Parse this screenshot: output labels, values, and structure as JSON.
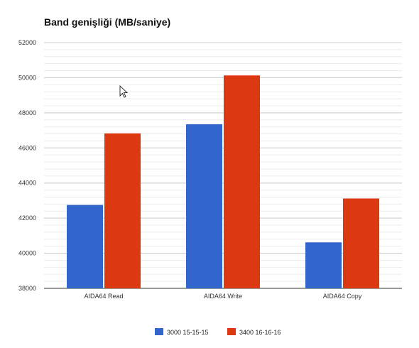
{
  "chart_data": {
    "type": "bar",
    "title": "Band genişliği (MB/saniye)",
    "xlabel": "",
    "ylabel": "",
    "categories": [
      "AIDA64 Read",
      "AIDA64 Write",
      "AIDA64 Copy"
    ],
    "series": [
      {
        "name": "3000 15-15-15",
        "color": "#3366cc",
        "values": [
          42750,
          47350,
          40620
        ]
      },
      {
        "name": "3400 16-16-16",
        "color": "#dc3912",
        "values": [
          46830,
          50130,
          43120
        ]
      }
    ],
    "ylim": [
      38000,
      52000
    ],
    "yticks": [
      38000,
      40000,
      42000,
      44000,
      46000,
      48000,
      50000,
      52000
    ],
    "ytick_labels": [
      "38000",
      "40000",
      "42000",
      "44000",
      "46000",
      "48000",
      "50000",
      "52000"
    ],
    "grid": true,
    "legend_position": "bottom"
  }
}
